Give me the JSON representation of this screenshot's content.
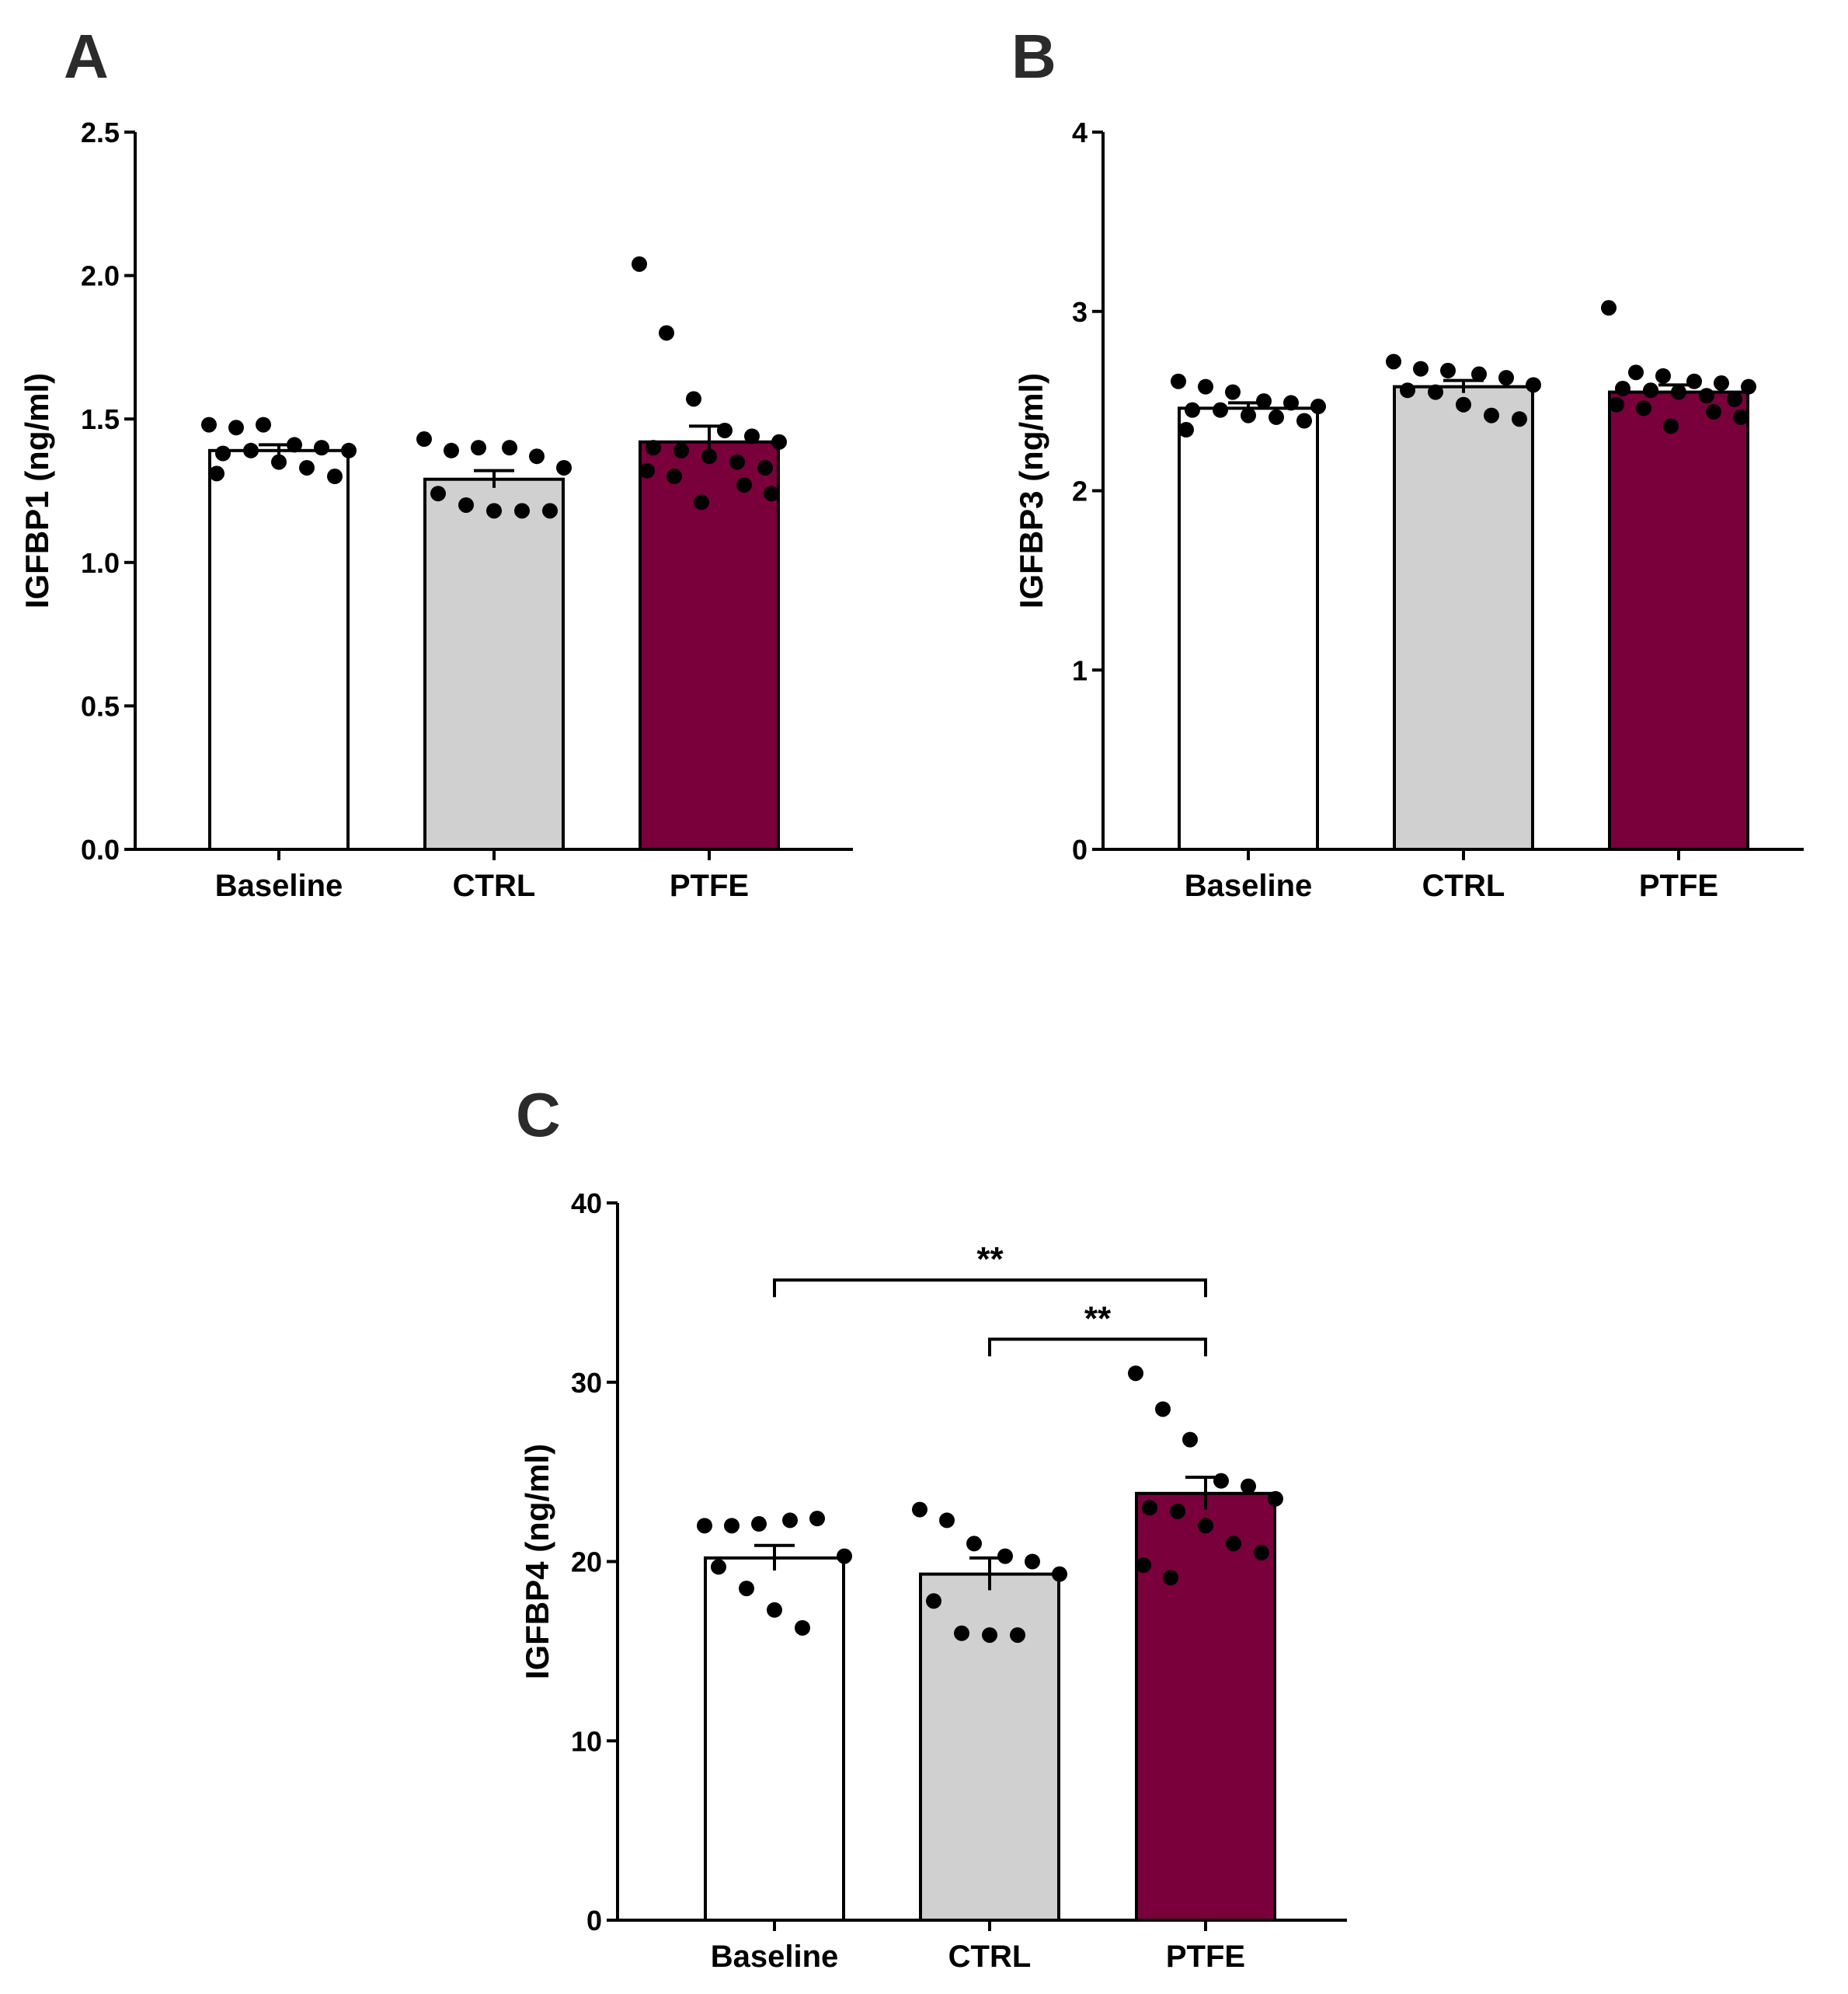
{
  "colors": {
    "baseline": "#ffffff",
    "ctrl": "#d0d0d0",
    "ptfe": "#7a003c",
    "stroke": "#000000"
  },
  "chart_data": [
    {
      "panel": "A",
      "type": "bar",
      "ylabel": "IGFBP1 (ng/ml)",
      "ylim": [
        0,
        2.5
      ],
      "yticks": [
        0,
        0.5,
        1,
        1.5,
        2,
        2.5
      ],
      "ytick_labels": [
        "0.0",
        "0.5",
        "1.0",
        "1.5",
        "2.0",
        "2.5"
      ],
      "categories": [
        "Baseline",
        "CTRL",
        "PTFE"
      ],
      "values": [
        1.39,
        1.29,
        1.42
      ],
      "sem": [
        0.02,
        0.03,
        0.055
      ],
      "points": [
        [
          1.48,
          1.47,
          1.48,
          1.41,
          1.4,
          1.39,
          1.38,
          1.39,
          1.35,
          1.33,
          1.3,
          1.31
        ],
        [
          1.43,
          1.39,
          1.4,
          1.4,
          1.37,
          1.33,
          1.24,
          1.2,
          1.18,
          1.18,
          1.18
        ],
        [
          2.04,
          1.8,
          1.57,
          1.46,
          1.44,
          1.42,
          1.4,
          1.39,
          1.37,
          1.35,
          1.33,
          1.32,
          1.3,
          1.27,
          1.24,
          1.21
        ]
      ],
      "annotations": []
    },
    {
      "panel": "B",
      "type": "bar",
      "ylabel": "IGFBP3 (ng/ml)",
      "ylim": [
        0,
        4
      ],
      "yticks": [
        0,
        1,
        2,
        3,
        4
      ],
      "ytick_labels": [
        "0",
        "1",
        "2",
        "3",
        "4"
      ],
      "categories": [
        "Baseline",
        "CTRL",
        "PTFE"
      ],
      "values": [
        2.46,
        2.58,
        2.55
      ],
      "sem": [
        0.03,
        0.035,
        0.04
      ],
      "points": [
        [
          2.61,
          2.58,
          2.55,
          2.5,
          2.49,
          2.47,
          2.45,
          2.45,
          2.42,
          2.41,
          2.39,
          2.34
        ],
        [
          2.72,
          2.68,
          2.67,
          2.65,
          2.63,
          2.59,
          2.56,
          2.55,
          2.48,
          2.42,
          2.4
        ],
        [
          3.02,
          2.66,
          2.64,
          2.61,
          2.6,
          2.58,
          2.57,
          2.56,
          2.55,
          2.53,
          2.51,
          2.48,
          2.46,
          2.44,
          2.41,
          2.36
        ]
      ],
      "annotations": []
    },
    {
      "panel": "C",
      "type": "bar",
      "ylabel": "IGFBP4 (ng/ml)",
      "ylim": [
        0,
        40
      ],
      "yticks": [
        0,
        10,
        20,
        30,
        40
      ],
      "ytick_labels": [
        "0",
        "10",
        "20",
        "30",
        "40"
      ],
      "categories": [
        "Baseline",
        "CTRL",
        "PTFE"
      ],
      "values": [
        20.2,
        19.3,
        23.8
      ],
      "sem": [
        0.7,
        0.9,
        0.9
      ],
      "points": [
        [
          22.0,
          22.0,
          22.1,
          22.3,
          22.4,
          20.3,
          19.7,
          18.5,
          17.3,
          16.3
        ],
        [
          22.9,
          22.3,
          21.0,
          20.3,
          20.0,
          19.3,
          17.8,
          16.0,
          15.9,
          15.9
        ],
        [
          30.5,
          28.5,
          26.8,
          24.5,
          24.2,
          23.5,
          23.0,
          22.8,
          22.0,
          21.0,
          20.5,
          19.8,
          19.1
        ]
      ],
      "annotations": [
        {
          "from": 0,
          "to": 2,
          "y": 35.7,
          "label": "**"
        },
        {
          "from": 1,
          "to": 2,
          "y": 32.4,
          "label": "**"
        }
      ]
    }
  ]
}
